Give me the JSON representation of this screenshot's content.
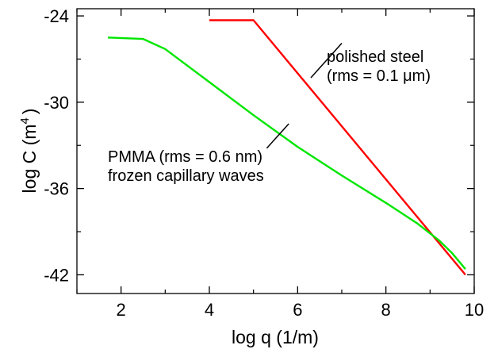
{
  "chart_data": {
    "type": "line",
    "xlabel": "log q (1/m)",
    "ylabel_main": "log C (m",
    "ylabel_sup": "4",
    "ylabel_close": ")",
    "xlim": [
      1,
      10
    ],
    "ylim": [
      -43.3,
      -23.5
    ],
    "x_major_ticks": [
      2,
      4,
      6,
      8,
      10
    ],
    "x_minor_ticks": [
      1,
      3,
      5,
      7,
      9
    ],
    "x_tick_labels": [
      "2",
      "4",
      "6",
      "8",
      "10"
    ],
    "y_major_ticks": [
      -24,
      -30,
      -36,
      -42
    ],
    "y_minor_ticks": [
      -27,
      -33,
      -39
    ],
    "y_tick_labels": [
      "-24",
      "-30",
      "-36",
      "-42"
    ],
    "grid": false,
    "series": [
      {
        "name": "polished steel",
        "color": "#ff0000",
        "x": [
          4.0,
          5.0,
          9.8
        ],
        "y": [
          -24.3,
          -24.3,
          -42.0
        ]
      },
      {
        "name": "PMMA",
        "color": "#00e600",
        "x": [
          1.7,
          2.5,
          3.0,
          4.0,
          5.0,
          6.0,
          7.0,
          8.0,
          8.7,
          9.2,
          9.5,
          9.8
        ],
        "y": [
          -25.5,
          -25.6,
          -26.3,
          -28.6,
          -30.9,
          -33.1,
          -35.1,
          -37.0,
          -38.4,
          -39.6,
          -40.5,
          -41.6
        ]
      }
    ],
    "annotations": [
      {
        "series": "polished steel",
        "lines": [
          "polished steel",
          "(rms = 0.1 μm)"
        ],
        "pointer_from": [
          7.0,
          -25.9
        ],
        "pointer_to": [
          6.3,
          -28.3
        ]
      },
      {
        "series": "PMMA",
        "lines": [
          "PMMA (rms = 0.6 nm)",
          "frozen capillary waves"
        ],
        "pointer_from": [
          5.8,
          -31.5
        ],
        "pointer_to": [
          5.3,
          -33.2
        ]
      }
    ]
  }
}
